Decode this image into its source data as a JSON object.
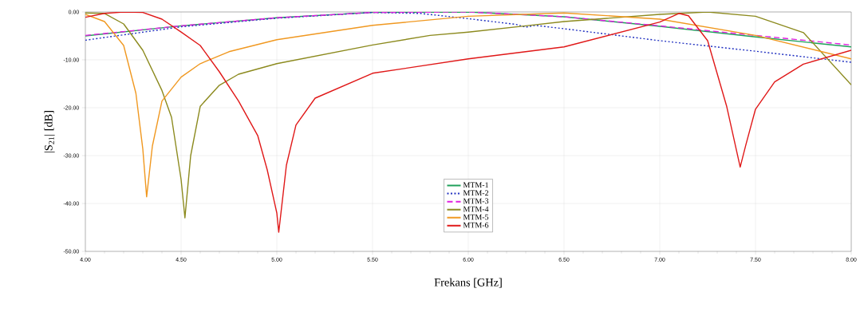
{
  "chart_data": {
    "type": "line",
    "xlabel": "Frekans [GHz]",
    "ylabel": "|S$_{21}$| [dB]",
    "xlim": [
      4,
      8
    ],
    "ylim": [
      -50,
      0
    ],
    "xticks": [
      {
        "value": 4,
        "label": "4.00"
      },
      {
        "value": 4.5,
        "label": "4.50"
      },
      {
        "value": 5,
        "label": "5.00"
      },
      {
        "value": 5.5,
        "label": "5.50"
      },
      {
        "value": 6,
        "label": "6.00"
      },
      {
        "value": 6.5,
        "label": "6.50"
      },
      {
        "value": 7,
        "label": "7.00"
      },
      {
        "value": 7.5,
        "label": "7.50"
      },
      {
        "value": 8,
        "label": "8.00"
      }
    ],
    "yticks": [
      {
        "value": -50,
        "label": "-50.00"
      },
      {
        "value": -40,
        "label": "-40.00"
      },
      {
        "value": -30,
        "label": "-30.00"
      },
      {
        "value": -20,
        "label": "-20.00"
      },
      {
        "value": -10,
        "label": "-10.00"
      },
      {
        "value": 0,
        "label": "0.00"
      }
    ],
    "grid": true,
    "legend": "bottom",
    "marker": "none",
    "series": [
      {
        "name": "MTM-1",
        "color": "#1fa05a",
        "line_style": "solid",
        "x": [
          4.0,
          4.5,
          5.0,
          5.5,
          6.0,
          6.5,
          7.0,
          7.5,
          8.0
        ],
        "values": [
          -5.0,
          -2.9,
          -1.2,
          -0.1,
          0.0,
          -1.0,
          -3.0,
          -5.2,
          -7.3
        ]
      },
      {
        "name": "MTM-2",
        "color": "#2030c0",
        "line_style": "dotted",
        "x": [
          4.0,
          4.5,
          5.0,
          5.5,
          5.75,
          6.0,
          6.25,
          6.3,
          6.35,
          6.5,
          7.0,
          7.5,
          8.0
        ],
        "values": [
          -5.9,
          -3.1,
          -1.3,
          -0.1,
          -0.3,
          -1.4,
          -2.6,
          -3.2,
          -2.8,
          -3.5,
          -6.0,
          -8.2,
          -10.5
        ]
      },
      {
        "name": "MTM-3",
        "color": "#e020e0",
        "line_style": "dashed",
        "x": [
          4.0,
          4.5,
          5.0,
          5.5,
          6.0,
          6.5,
          7.0,
          7.5,
          8.0
        ],
        "values": [
          -4.9,
          -2.9,
          -1.2,
          -0.1,
          0.0,
          -1.0,
          -2.9,
          -4.9,
          -6.9
        ]
      },
      {
        "name": "MTM-4",
        "color": "#8c8a1e",
        "line_style": "solid",
        "x": [
          4.0,
          4.1,
          4.2,
          4.3,
          4.4,
          4.45,
          4.5,
          4.52,
          4.55,
          4.6,
          4.7,
          4.8,
          5.0,
          5.5,
          5.8,
          6.0,
          6.3,
          6.5,
          7.0,
          7.25,
          7.5,
          7.75,
          8.0
        ],
        "values": [
          -0.2,
          -0.3,
          -2.5,
          -8.0,
          -16.4,
          -22.0,
          -35.0,
          -43.0,
          -30.0,
          -19.7,
          -15.3,
          -13.0,
          -10.8,
          -6.9,
          -4.9,
          -4.2,
          -2.9,
          -2.0,
          -0.5,
          0.0,
          -0.9,
          -4.3,
          -15.2
        ]
      },
      {
        "name": "MTM-5",
        "color": "#f09820",
        "line_style": "solid",
        "x": [
          4.0,
          4.1,
          4.2,
          4.264,
          4.3,
          4.32,
          4.35,
          4.4,
          4.5,
          4.6,
          4.75,
          5.0,
          5.5,
          6.0,
          6.5,
          7.0,
          7.5,
          8.0
        ],
        "values": [
          -0.5,
          -2.0,
          -7.0,
          -17.0,
          -28.6,
          -38.6,
          -28.0,
          -18.6,
          -13.6,
          -10.8,
          -8.3,
          -5.8,
          -2.8,
          -0.9,
          -0.2,
          -1.5,
          -4.9,
          -9.8
        ]
      },
      {
        "name": "MTM-6",
        "color": "#e01818",
        "line_style": "solid",
        "x": [
          4.0,
          4.1,
          4.2,
          4.3,
          4.4,
          4.5,
          4.6,
          4.7,
          4.8,
          4.9,
          4.95,
          5.0,
          5.01,
          5.05,
          5.1,
          5.2,
          5.5,
          6.0,
          6.5,
          7.0,
          7.1,
          7.15,
          7.25,
          7.35,
          7.42,
          7.45,
          7.5,
          7.6,
          7.75,
          8.0
        ],
        "values": [
          -1.1,
          -0.3,
          0.0,
          -0.1,
          -1.5,
          -4.2,
          -7.0,
          -12.5,
          -18.6,
          -25.8,
          -33.0,
          -42.0,
          -46.0,
          -32.0,
          -23.6,
          -18.0,
          -12.8,
          -9.8,
          -7.3,
          -2.1,
          -0.3,
          -0.8,
          -6.0,
          -19.8,
          -32.4,
          -27.7,
          -20.3,
          -14.6,
          -10.9,
          -8.0
        ]
      }
    ]
  }
}
